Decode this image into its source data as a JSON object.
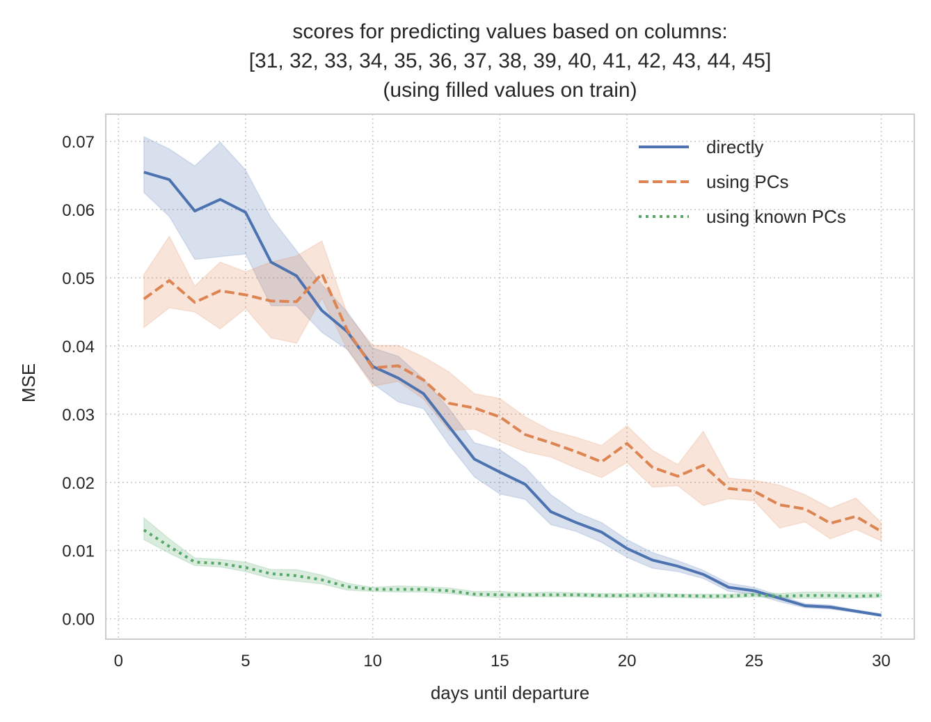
{
  "chart_data": {
    "type": "line",
    "title_lines": [
      "scores for predicting values based on columns:",
      "[31, 32, 33, 34, 35, 36, 37, 38, 39, 40, 41, 42, 43, 44, 45]",
      "(using filled values on train)"
    ],
    "xlabel": "days until departure",
    "ylabel": "MSE",
    "xlim": [
      -0.5,
      31.3
    ],
    "ylim": [
      -0.003,
      0.074
    ],
    "xticks": [
      0,
      5,
      10,
      15,
      20,
      25,
      30
    ],
    "xtick_labels": [
      "0",
      "5",
      "10",
      "15",
      "20",
      "25",
      "30"
    ],
    "yticks": [
      0.0,
      0.01,
      0.02,
      0.03,
      0.04,
      0.05,
      0.06,
      0.07
    ],
    "ytick_labels": [
      "0.00",
      "0.01",
      "0.02",
      "0.03",
      "0.04",
      "0.05",
      "0.06",
      "0.07"
    ],
    "grid": true,
    "legend_position": "top-right",
    "x": [
      1,
      2,
      3,
      4,
      5,
      6,
      7,
      8,
      9,
      10,
      11,
      12,
      13,
      14,
      15,
      16,
      17,
      18,
      19,
      20,
      21,
      22,
      23,
      24,
      25,
      26,
      27,
      28,
      29,
      30
    ],
    "series": [
      {
        "name": "directly",
        "color": "#4c72b0",
        "linestyle": "solid",
        "values": [
          0.0655,
          0.0644,
          0.0598,
          0.0615,
          0.0596,
          0.0523,
          0.0503,
          0.0452,
          0.0421,
          0.037,
          0.0353,
          0.033,
          0.0282,
          0.0234,
          0.0215,
          0.0197,
          0.0157,
          0.0141,
          0.0127,
          0.0103,
          0.0086,
          0.0077,
          0.0065,
          0.0046,
          0.0041,
          0.003,
          0.0019,
          0.0017,
          0.0011,
          0.0005
        ],
        "lower": [
          0.0625,
          0.059,
          0.0527,
          0.0531,
          0.0535,
          0.0459,
          0.0459,
          0.042,
          0.0395,
          0.0345,
          0.0318,
          0.0308,
          0.0255,
          0.0208,
          0.0183,
          0.0175,
          0.0138,
          0.0128,
          0.0112,
          0.009,
          0.0074,
          0.0069,
          0.0059,
          0.004,
          0.0036,
          0.0025,
          0.0016,
          0.0014,
          0.0009,
          0.0004
        ],
        "upper": [
          0.0707,
          0.0689,
          0.0664,
          0.0699,
          0.0658,
          0.0588,
          0.054,
          0.049,
          0.045,
          0.0397,
          0.0385,
          0.0352,
          0.0308,
          0.0258,
          0.0248,
          0.0222,
          0.0182,
          0.0156,
          0.0141,
          0.0116,
          0.0097,
          0.0085,
          0.0071,
          0.0052,
          0.0046,
          0.0034,
          0.0022,
          0.002,
          0.0013,
          0.0007
        ]
      },
      {
        "name": "using PCs",
        "color": "#dd8452",
        "linestyle": "dashed",
        "values": [
          0.0469,
          0.0496,
          0.0464,
          0.0481,
          0.0475,
          0.0466,
          0.0465,
          0.0506,
          0.0423,
          0.0368,
          0.0371,
          0.035,
          0.0316,
          0.0309,
          0.0296,
          0.027,
          0.0258,
          0.0245,
          0.023,
          0.0257,
          0.0222,
          0.0209,
          0.0225,
          0.0191,
          0.0187,
          0.0167,
          0.0161,
          0.014,
          0.015,
          0.0128
        ],
        "lower": [
          0.0427,
          0.0456,
          0.045,
          0.0425,
          0.0455,
          0.0412,
          0.0404,
          0.047,
          0.0395,
          0.0341,
          0.0348,
          0.0322,
          0.0276,
          0.0278,
          0.026,
          0.0245,
          0.0237,
          0.0221,
          0.0207,
          0.0229,
          0.0193,
          0.0195,
          0.0166,
          0.0176,
          0.0173,
          0.0133,
          0.0142,
          0.0117,
          0.0131,
          0.0114
        ],
        "upper": [
          0.0505,
          0.0561,
          0.0488,
          0.0523,
          0.0509,
          0.0523,
          0.0532,
          0.0554,
          0.0447,
          0.0401,
          0.0401,
          0.0384,
          0.0362,
          0.033,
          0.0323,
          0.0296,
          0.0276,
          0.0266,
          0.0254,
          0.0283,
          0.0247,
          0.0226,
          0.0275,
          0.0206,
          0.0203,
          0.0196,
          0.0182,
          0.0162,
          0.0177,
          0.0141
        ]
      },
      {
        "name": "using known PCs",
        "color": "#55a868",
        "linestyle": "dotted",
        "values": [
          0.013,
          0.0106,
          0.0083,
          0.0081,
          0.0075,
          0.0066,
          0.0063,
          0.0057,
          0.0047,
          0.0043,
          0.0043,
          0.0043,
          0.0041,
          0.0036,
          0.0035,
          0.0035,
          0.0035,
          0.0035,
          0.0034,
          0.0034,
          0.0034,
          0.0034,
          0.0033,
          0.0033,
          0.0035,
          0.0033,
          0.0034,
          0.0034,
          0.0033,
          0.0034
        ],
        "lower": [
          0.0116,
          0.0096,
          0.0078,
          0.0076,
          0.0069,
          0.0059,
          0.0055,
          0.0051,
          0.0042,
          0.004,
          0.0039,
          0.0039,
          0.0037,
          0.0033,
          0.0031,
          0.0032,
          0.0032,
          0.0032,
          0.0031,
          0.0031,
          0.0031,
          0.0031,
          0.003,
          0.003,
          0.0032,
          0.003,
          0.003,
          0.003,
          0.003,
          0.0031
        ],
        "upper": [
          0.0148,
          0.0117,
          0.0089,
          0.0087,
          0.0083,
          0.0072,
          0.0072,
          0.0064,
          0.0052,
          0.0046,
          0.0048,
          0.0047,
          0.0045,
          0.004,
          0.004,
          0.0038,
          0.0039,
          0.0038,
          0.0037,
          0.0037,
          0.0038,
          0.0036,
          0.0036,
          0.0036,
          0.0038,
          0.0037,
          0.0039,
          0.0039,
          0.0038,
          0.0038
        ]
      }
    ]
  }
}
